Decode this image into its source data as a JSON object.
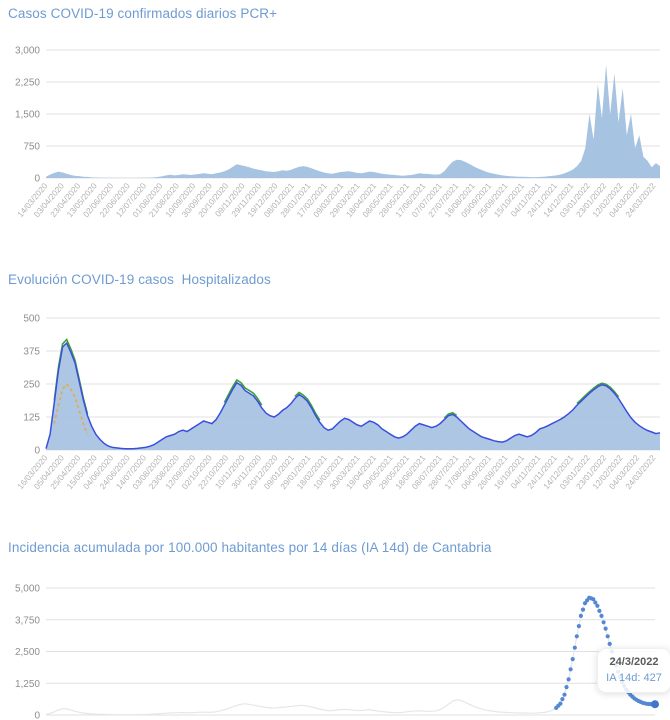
{
  "page": {
    "background": "#ffffff"
  },
  "chart_data": [
    {
      "type": "area",
      "title": "Casos COVID-19 confirmados diarios PCR+",
      "title_color": "#6f9bd1",
      "fill": "#a6c3e1",
      "ymax": 3000,
      "ylim": [
        0,
        3000
      ],
      "grid": true,
      "y_tick_labels": [
        "3,000",
        "2,250",
        "1,500",
        "750",
        "0"
      ],
      "x_tick_labels": [
        "14/03/2020",
        "03/04/2020",
        "23/04/2020",
        "13/05/2020",
        "02/06/2020",
        "22/06/2020",
        "12/07/2020",
        "01/08/2020",
        "21/08/2020",
        "10/09/2020",
        "30/09/2020",
        "20/10/2020",
        "09/11/2020",
        "29/11/2020",
        "19/12/2020",
        "08/01/2021",
        "28/01/2021",
        "17/02/2021",
        "09/03/2021",
        "29/03/2021",
        "18/04/2021",
        "08/05/2021",
        "28/05/2021",
        "17/06/2021",
        "07/07/2021",
        "27/07/2021",
        "16/08/2021",
        "05/09/2021",
        "25/09/2021",
        "15/10/2021",
        "04/11/2021",
        "24/11/2021",
        "14/12/2021",
        "03/01/2022",
        "23/01/2022",
        "12/02/2022",
        "04/03/2022",
        "24/03/2022"
      ],
      "sample_interval_days": 5,
      "values": [
        30,
        80,
        120,
        150,
        130,
        100,
        70,
        50,
        45,
        30,
        25,
        15,
        12,
        10,
        8,
        5,
        4,
        3,
        3,
        2,
        2,
        3,
        4,
        5,
        8,
        10,
        15,
        25,
        40,
        60,
        75,
        60,
        70,
        90,
        80,
        70,
        85,
        95,
        110,
        100,
        90,
        110,
        130,
        160,
        200,
        260,
        320,
        300,
        280,
        250,
        220,
        200,
        180,
        160,
        150,
        140,
        160,
        180,
        170,
        190,
        230,
        260,
        280,
        260,
        230,
        190,
        160,
        130,
        110,
        100,
        120,
        140,
        150,
        160,
        140,
        120,
        110,
        130,
        150,
        140,
        120,
        100,
        90,
        80,
        70,
        60,
        55,
        60,
        70,
        90,
        110,
        100,
        95,
        85,
        80,
        90,
        160,
        280,
        380,
        430,
        420,
        380,
        330,
        280,
        230,
        190,
        150,
        120,
        100,
        80,
        60,
        50,
        40,
        35,
        30,
        28,
        25,
        22,
        20,
        25,
        30,
        40,
        50,
        60,
        80,
        110,
        150,
        200,
        280,
        400,
        700,
        1500,
        900,
        2200,
        1400,
        2650,
        1500,
        2450,
        1300,
        2100,
        1000,
        1500,
        700,
        1000,
        500,
        400,
        250,
        350,
        280
      ]
    },
    {
      "type": "multi-area",
      "title": "Evolución COVID-19 casos  Hospitalizados",
      "title_color": "#6f9bd1",
      "ymax": 500,
      "ylim": [
        0,
        500
      ],
      "grid": true,
      "y_tick_labels": [
        "500",
        "375",
        "250",
        "125",
        "0"
      ],
      "x_tick_labels": [
        "16/03/2020",
        "05/04/2020",
        "25/04/2020",
        "15/05/2020",
        "04/06/2020",
        "24/06/2020",
        "14/07/2020",
        "03/08/2020",
        "23/08/2020",
        "12/09/2020",
        "02/10/2020",
        "22/10/2020",
        "10/11/2020",
        "30/11/2020",
        "20/12/2020",
        "09/01/2021",
        "29/01/2021",
        "18/02/2021",
        "10/03/2021",
        "30/03/2021",
        "19/04/2021",
        "09/05/2021",
        "29/05/2021",
        "18/06/2021",
        "08/07/2021",
        "28/07/2021",
        "17/08/2021",
        "06/09/2021",
        "26/09/2021",
        "16/10/2021",
        "04/11/2021",
        "24/11/2021",
        "14/12/2021",
        "03/01/2022",
        "23/01/2022",
        "12/02/2022",
        "04/03/2022",
        "24/03/2022"
      ],
      "sample_interval_days": 5,
      "series": [
        {
          "id": "principal",
          "stroke": "#3a50dc",
          "fill": "#a9c3e2",
          "values": [
            5,
            60,
            180,
            300,
            390,
            405,
            370,
            330,
            260,
            190,
            130,
            90,
            60,
            40,
            25,
            15,
            10,
            8,
            6,
            5,
            5,
            5,
            6,
            8,
            10,
            14,
            20,
            30,
            40,
            50,
            55,
            60,
            70,
            75,
            70,
            80,
            90,
            100,
            110,
            105,
            100,
            115,
            140,
            170,
            200,
            230,
            255,
            245,
            225,
            215,
            205,
            185,
            160,
            140,
            130,
            125,
            135,
            150,
            160,
            175,
            195,
            210,
            200,
            185,
            160,
            130,
            105,
            85,
            75,
            80,
            95,
            110,
            120,
            115,
            105,
            95,
            90,
            100,
            110,
            105,
            95,
            80,
            70,
            60,
            50,
            45,
            50,
            60,
            75,
            90,
            100,
            95,
            90,
            85,
            90,
            100,
            115,
            130,
            135,
            125,
            110,
            95,
            80,
            70,
            60,
            50,
            45,
            40,
            35,
            32,
            30,
            35,
            45,
            55,
            60,
            55,
            50,
            55,
            65,
            80,
            85,
            92,
            100,
            108,
            116,
            126,
            138,
            152,
            170,
            185,
            200,
            215,
            228,
            240,
            247,
            243,
            232,
            215,
            195,
            170,
            145,
            122,
            105,
            92,
            82,
            74,
            68,
            62,
            65
          ]
        },
        {
          "id": "verde",
          "stroke": "#3f9e3f",
          "segments": [
            {
              "start_index": 2,
              "values": [
                188,
                312,
                402,
                418,
                382,
                340,
                268,
                197,
                136
              ]
            },
            {
              "start_index": 43,
              "values": [
                180,
                210,
                240,
                265,
                255,
                235,
                225,
                215,
                195,
                170
              ]
            },
            {
              "start_index": 60,
              "values": [
                203,
                218,
                208,
                193,
                168,
                138,
                113
              ]
            },
            {
              "start_index": 96,
              "values": [
                121,
                136,
                141,
                131
              ]
            },
            {
              "start_index": 128,
              "values": [
                176,
                191,
                206,
                221,
                234,
                246,
                253,
                249,
                238,
                221,
                201
              ]
            }
          ]
        },
        {
          "id": "naranja",
          "stroke": "#e7a93f",
          "dashed": true,
          "segments": [
            {
              "start_index": 2,
              "values": [
                100,
                170,
                230,
                250,
                230,
                200,
                150,
                100,
                60
              ]
            }
          ]
        }
      ]
    },
    {
      "type": "dotted-line",
      "title": "Incidencia acumulada por 100.000 habitantes por 14 días (IA 14d) de Cantabria",
      "title_color": "#6f9bd1",
      "ymax": 5000,
      "ylim": [
        0,
        5000
      ],
      "grid": true,
      "y_tick_labels": [
        "5,000",
        "3,750",
        "2,500",
        "1,250",
        "0"
      ],
      "line_color": "#e2e7ee",
      "dot_color": "#5688d2",
      "highlight_color": "#4176c9",
      "dot_start_index": 124,
      "sample_interval_days": 5,
      "values": [
        20,
        60,
        120,
        200,
        250,
        240,
        200,
        150,
        110,
        80,
        60,
        45,
        35,
        28,
        22,
        18,
        15,
        13,
        12,
        11,
        10,
        11,
        13,
        16,
        20,
        26,
        34,
        44,
        56,
        70,
        80,
        85,
        92,
        100,
        95,
        88,
        95,
        105,
        115,
        110,
        105,
        120,
        150,
        190,
        240,
        300,
        360,
        410,
        440,
        430,
        400,
        370,
        340,
        310,
        290,
        275,
        285,
        300,
        310,
        325,
        345,
        365,
        380,
        365,
        335,
        295,
        255,
        215,
        185,
        165,
        180,
        200,
        215,
        225,
        205,
        185,
        170,
        185,
        205,
        195,
        175,
        150,
        130,
        115,
        100,
        90,
        95,
        110,
        130,
        150,
        165,
        160,
        150,
        140,
        150,
        170,
        230,
        330,
        450,
        560,
        600,
        560,
        490,
        410,
        340,
        280,
        230,
        190,
        160,
        140,
        120,
        110,
        100,
        90,
        85,
        80,
        78,
        75,
        72,
        75,
        85,
        100,
        130,
        180,
        280,
        450,
        800,
        1400,
        2200,
        3100,
        3900,
        4400,
        4620,
        4560,
        4300,
        3900,
        3400,
        2800,
        2200,
        1700,
        1300,
        1000,
        800,
        650,
        550,
        480,
        440,
        430,
        427
      ],
      "tooltip": {
        "date": "24/3/2022",
        "text": "IA 14d: 427",
        "value": 427
      }
    }
  ]
}
